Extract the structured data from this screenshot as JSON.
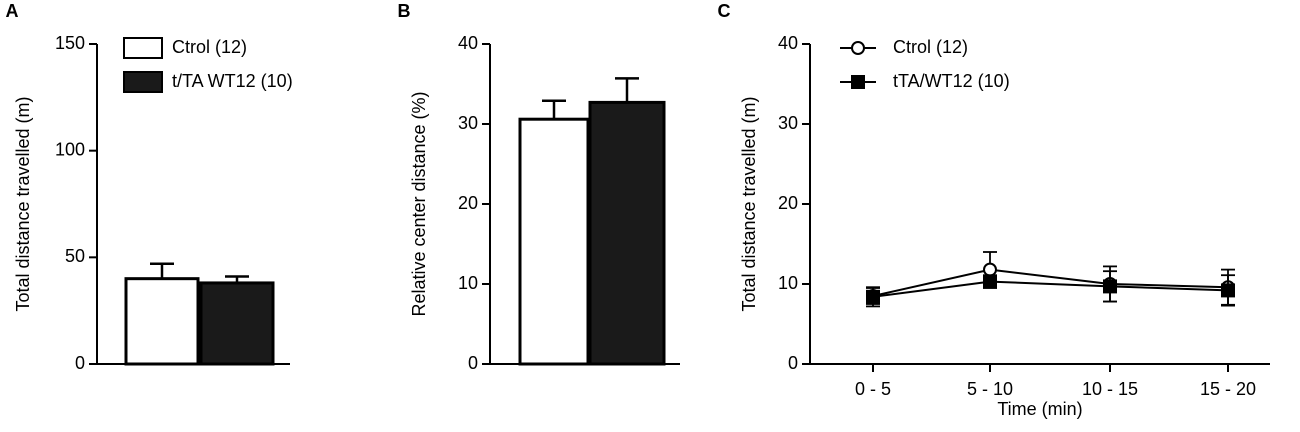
{
  "chart_data": [
    {
      "type": "bar",
      "label": "A",
      "y_label": "Total distance travelled (m)",
      "ylim": [
        0,
        150
      ],
      "yticks": [
        0,
        50,
        100,
        150
      ],
      "series": [
        {
          "name": "Ctrol (12)",
          "color": "#ffffff",
          "values": [
            40
          ],
          "errors": [
            7
          ]
        },
        {
          "name": "t/TA WT12 (10)",
          "color": "#1a1a1a",
          "values": [
            38
          ],
          "errors": [
            3
          ]
        }
      ]
    },
    {
      "type": "bar",
      "label": "B",
      "y_label": "Relative center distance (%)",
      "ylim": [
        0,
        40
      ],
      "yticks": [
        0,
        10,
        20,
        30,
        40
      ],
      "series": [
        {
          "name": "Ctrol",
          "color": "#ffffff",
          "values": [
            30.6
          ],
          "errors": [
            2.3
          ]
        },
        {
          "name": "tTA/WT12",
          "color": "#1a1a1a",
          "values": [
            32.7
          ],
          "errors": [
            3
          ]
        }
      ]
    },
    {
      "type": "line",
      "label": "C",
      "y_label": "Total distance travelled (m)",
      "x_label": "Time (min)",
      "categories": [
        "0 - 5",
        "5 - 10",
        "10 - 15",
        "15 - 20"
      ],
      "ylim": [
        0,
        40
      ],
      "yticks": [
        0,
        10,
        20,
        30,
        40
      ],
      "series": [
        {
          "name": "Ctrol (12)",
          "color": "#000000",
          "marker": "circle",
          "marker_fill": "#ffffff",
          "values": [
            8.5,
            11.8,
            10,
            9.6
          ],
          "errors": [
            1,
            2.2,
            2.2,
            2.2
          ]
        },
        {
          "name": "tTA/WT12 (10)",
          "color": "#000000",
          "marker": "square",
          "marker_fill": "#000000",
          "values": [
            8.4,
            10.3,
            9.7,
            9.2
          ],
          "errors": [
            1.2,
            0.8,
            1.9,
            1.9
          ]
        }
      ]
    }
  ]
}
